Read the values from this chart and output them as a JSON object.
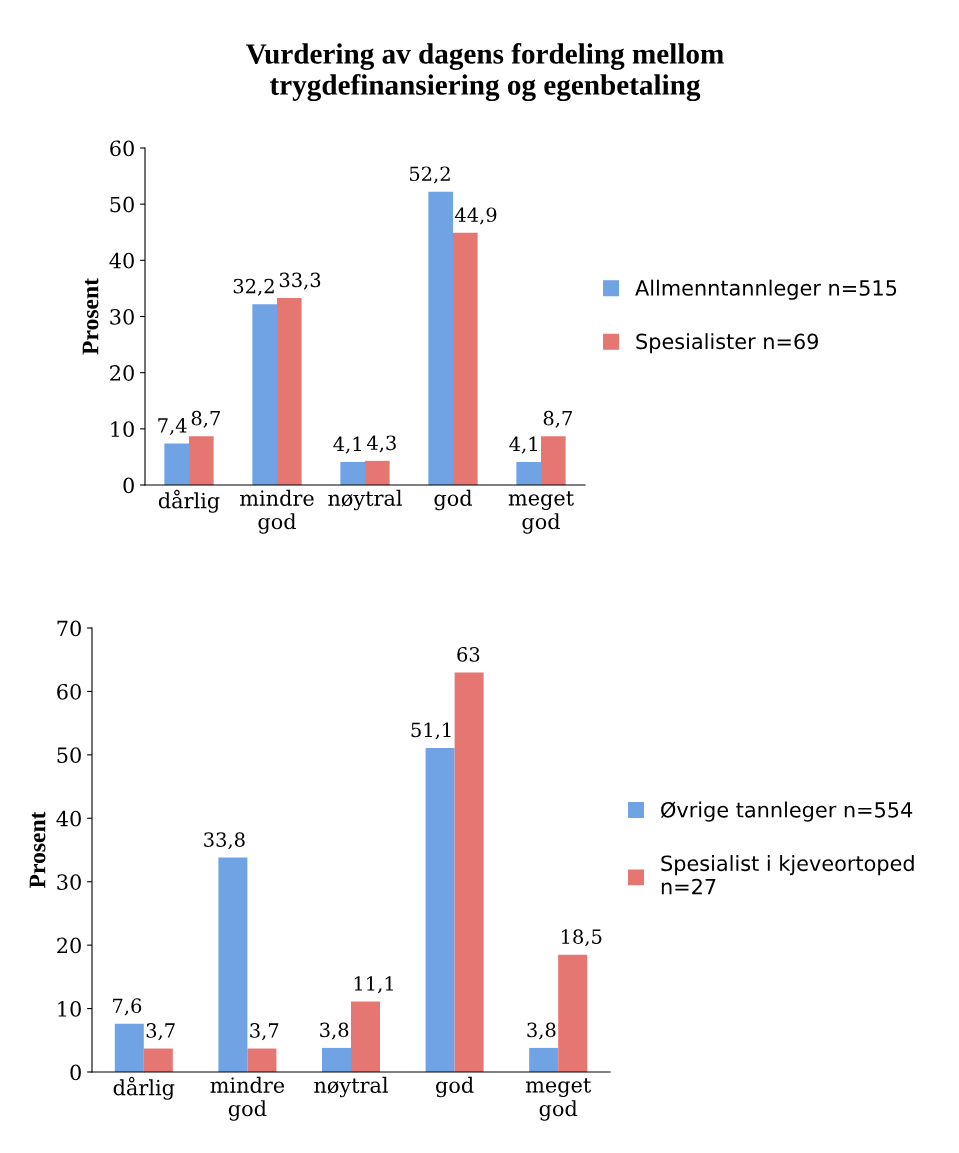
{
  "chart_data": [
    {
      "type": "bar",
      "title": "Vurdering av dagens fordeling mellom trygdefinansiering og egenbetaling",
      "ylabel": "Prosent",
      "categories": [
        "dårlig",
        "mindre god",
        "nøytral",
        "god",
        "meget god"
      ],
      "ylim": [
        0,
        60
      ],
      "yticks": [
        0,
        10,
        20,
        30,
        40,
        50,
        60
      ],
      "legend": "right",
      "grid": false,
      "series": [
        {
          "name": "Allmenntannleger n=515",
          "color": "#6fa3e3",
          "values": [
            7.4,
            32.2,
            4.1,
            52.2,
            4.1
          ],
          "value_labels": [
            "7,4",
            "32,2",
            "4,1",
            "52,2",
            "4,1"
          ]
        },
        {
          "name": "Spesialister n=69",
          "color": "#e57672",
          "values": [
            8.7,
            33.3,
            4.3,
            44.9,
            8.7
          ],
          "value_labels": [
            "8,7",
            "33,3",
            "4,3",
            "44,9",
            "8,7"
          ]
        }
      ]
    },
    {
      "type": "bar",
      "ylabel": "Prosent",
      "categories": [
        "dårlig",
        "mindre god",
        "nøytral",
        "god",
        "meget god"
      ],
      "ylim": [
        0,
        70
      ],
      "yticks": [
        0,
        10,
        20,
        30,
        40,
        50,
        60,
        70
      ],
      "legend": "right",
      "grid": false,
      "series": [
        {
          "name": "Øvrige tannleger n=554",
          "color": "#6fa3e3",
          "values": [
            7.6,
            33.8,
            3.8,
            51.1,
            3.8
          ],
          "value_labels": [
            "7,6",
            "33,8",
            "3,8",
            "51,1",
            "3,8"
          ]
        },
        {
          "name": "Spesialist i kjeveortoped n=27",
          "color": "#e57672",
          "values": [
            3.7,
            3.7,
            11.1,
            63,
            18.5
          ],
          "value_labels": [
            "3,7",
            "3,7",
            "11,1",
            "63",
            "18,5"
          ]
        }
      ]
    }
  ]
}
